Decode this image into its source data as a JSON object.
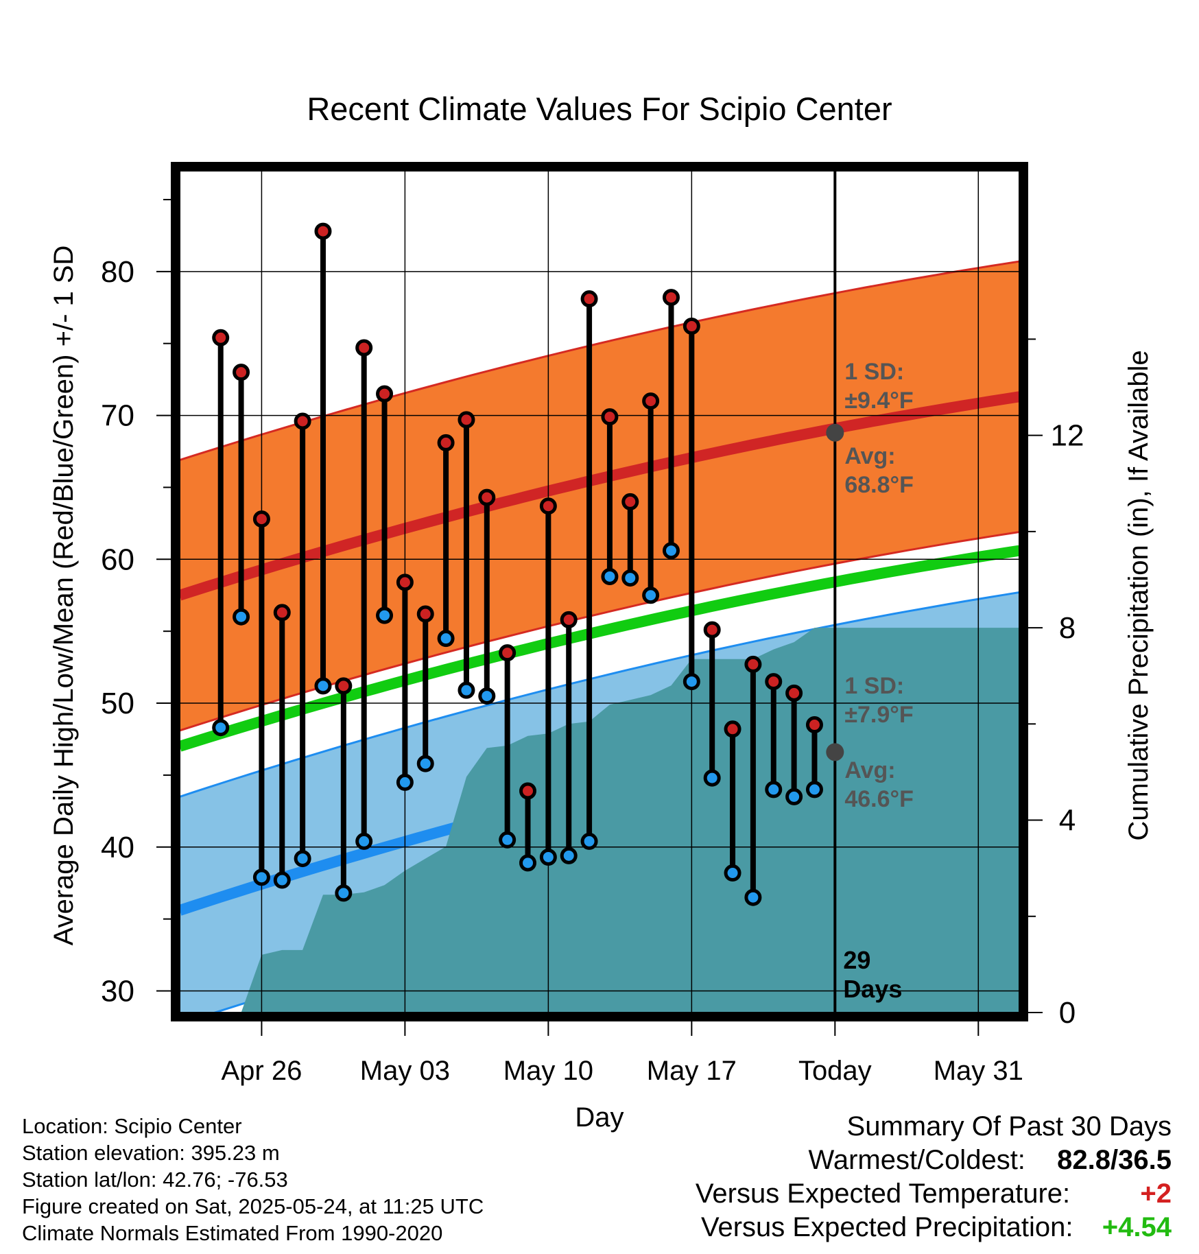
{
  "chart_data": {
    "type": "line",
    "title": "Recent Climate Values For Scipio Center",
    "xlabel": "Day",
    "ylabel": "Average Daily High/Low/Mean (Red/Blue/Green) +/- 1 SD",
    "y2label": "Cumulative Precipitation (in), If Available",
    "ylim": [
      28.5,
      87
    ],
    "y2lim": [
      0,
      17.5
    ],
    "xlim": [
      "2025-04-22",
      "2025-06-02"
    ],
    "y_ticks": [
      "30",
      "40",
      "50",
      "60",
      "70",
      "80"
    ],
    "y2_ticks": [
      "0",
      "4",
      "8",
      "12"
    ],
    "x_ticks": [
      {
        "date": "2025-04-26",
        "label": "Apr 26"
      },
      {
        "date": "2025-05-03",
        "label": "May 03"
      },
      {
        "date": "2025-05-10",
        "label": "May 10"
      },
      {
        "date": "2025-05-17",
        "label": "May 17"
      },
      {
        "date": "2025-05-24",
        "label": "Today"
      },
      {
        "date": "2025-05-31",
        "label": "May 31"
      }
    ],
    "today": "2025-05-24",
    "days_label": [
      "29",
      "Days"
    ],
    "normals": {
      "start_date": "2025-04-22",
      "end_date": "2025-06-02",
      "avg_high": [
        57.5,
        71.3
      ],
      "high_sd": 9.4,
      "avg_low": [
        35.6,
        49.8
      ],
      "low_sd": 7.9,
      "avg_mean": [
        47.0,
        60.6
      ]
    },
    "annotations": {
      "high_sd_label": [
        "1 SD:",
        "±9.4°F"
      ],
      "high_avg_label": [
        "Avg:",
        "68.8°F"
      ],
      "high_avg_value": 68.8,
      "low_sd_label": [
        "1 SD:",
        "±7.9°F"
      ],
      "low_avg_label": [
        "Avg:",
        "46.6°F"
      ],
      "low_avg_value": 46.6
    },
    "daily": [
      {
        "date": "2025-04-24",
        "high": 75.4,
        "low": 48.3
      },
      {
        "date": "2025-04-25",
        "high": 73.0,
        "low": 56.0
      },
      {
        "date": "2025-04-26",
        "high": 62.8,
        "low": 37.9
      },
      {
        "date": "2025-04-27",
        "high": 56.3,
        "low": 37.7
      },
      {
        "date": "2025-04-28",
        "high": 69.6,
        "low": 39.2
      },
      {
        "date": "2025-04-29",
        "high": 82.8,
        "low": 51.2
      },
      {
        "date": "2025-04-30",
        "high": 51.2,
        "low": 36.8
      },
      {
        "date": "2025-05-01",
        "high": 74.7,
        "low": 40.4
      },
      {
        "date": "2025-05-02",
        "high": 71.5,
        "low": 56.1
      },
      {
        "date": "2025-05-03",
        "high": 58.4,
        "low": 44.5
      },
      {
        "date": "2025-05-04",
        "high": 56.2,
        "low": 45.8
      },
      {
        "date": "2025-05-05",
        "high": 68.1,
        "low": 54.5
      },
      {
        "date": "2025-05-06",
        "high": 69.7,
        "low": 50.9
      },
      {
        "date": "2025-05-07",
        "high": 64.3,
        "low": 50.5
      },
      {
        "date": "2025-05-08",
        "high": 53.5,
        "low": 40.5
      },
      {
        "date": "2025-05-09",
        "high": 43.9,
        "low": 38.9
      },
      {
        "date": "2025-05-10",
        "high": 63.7,
        "low": 39.3
      },
      {
        "date": "2025-05-11",
        "high": 55.8,
        "low": 39.4
      },
      {
        "date": "2025-05-12",
        "high": 78.1,
        "low": 40.4
      },
      {
        "date": "2025-05-13",
        "high": 69.9,
        "low": 58.8
      },
      {
        "date": "2025-05-14",
        "high": 64.0,
        "low": 58.7
      },
      {
        "date": "2025-05-15",
        "high": 71.0,
        "low": 57.5
      },
      {
        "date": "2025-05-16",
        "high": 78.2,
        "low": 60.6
      },
      {
        "date": "2025-05-17",
        "high": 76.2,
        "low": 51.5
      },
      {
        "date": "2025-05-18",
        "high": 55.1,
        "low": 44.8
      },
      {
        "date": "2025-05-19",
        "high": 48.2,
        "low": 38.2
      },
      {
        "date": "2025-05-20",
        "high": 52.7,
        "low": 36.5
      },
      {
        "date": "2025-05-21",
        "high": 51.5,
        "low": 44.0
      },
      {
        "date": "2025-05-22",
        "high": 50.7,
        "low": 43.5
      },
      {
        "date": "2025-05-23",
        "high": 48.5,
        "low": 44.0
      }
    ],
    "cumulative_precip": [
      {
        "date": "2025-04-23",
        "value": 0.0
      },
      {
        "date": "2025-04-24",
        "value": 0.0
      },
      {
        "date": "2025-04-25",
        "value": 0.0
      },
      {
        "date": "2025-04-26",
        "value": 1.2
      },
      {
        "date": "2025-04-27",
        "value": 1.3
      },
      {
        "date": "2025-04-28",
        "value": 1.3
      },
      {
        "date": "2025-04-29",
        "value": 2.45
      },
      {
        "date": "2025-04-30",
        "value": 2.45
      },
      {
        "date": "2025-05-01",
        "value": 2.5
      },
      {
        "date": "2025-05-02",
        "value": 2.65
      },
      {
        "date": "2025-05-03",
        "value": 2.95
      },
      {
        "date": "2025-05-04",
        "value": 3.2
      },
      {
        "date": "2025-05-05",
        "value": 3.45
      },
      {
        "date": "2025-05-06",
        "value": 4.9
      },
      {
        "date": "2025-05-07",
        "value": 5.5
      },
      {
        "date": "2025-05-08",
        "value": 5.55
      },
      {
        "date": "2025-05-09",
        "value": 5.75
      },
      {
        "date": "2025-05-10",
        "value": 5.8
      },
      {
        "date": "2025-05-11",
        "value": 6.0
      },
      {
        "date": "2025-05-12",
        "value": 6.05
      },
      {
        "date": "2025-05-13",
        "value": 6.4
      },
      {
        "date": "2025-05-14",
        "value": 6.5
      },
      {
        "date": "2025-05-15",
        "value": 6.6
      },
      {
        "date": "2025-05-16",
        "value": 6.8
      },
      {
        "date": "2025-05-17",
        "value": 7.35
      },
      {
        "date": "2025-05-18",
        "value": 7.35
      },
      {
        "date": "2025-05-19",
        "value": 7.35
      },
      {
        "date": "2025-05-20",
        "value": 7.35
      },
      {
        "date": "2025-05-21",
        "value": 7.55
      },
      {
        "date": "2025-05-22",
        "value": 7.7
      },
      {
        "date": "2025-05-23",
        "value": 8.0
      },
      {
        "date": "2025-06-02",
        "value": 8.0
      }
    ],
    "colors": {
      "high_band": "#f47a2e",
      "high_band_edge": "#d52a22",
      "high_avg": "#d02525",
      "low_band": "#86c2e6",
      "low_band_edge": "#1e8df0",
      "low_avg": "#1e8df0",
      "mean_avg": "#11cc11",
      "precip": "#4a9aa4",
      "high_dot": "#cc2222",
      "low_dot": "#2299ee",
      "avg_marker": "#444444",
      "annotation_text": "#555555"
    }
  },
  "footer": {
    "location": "Location: Scipio Center",
    "elevation": "Station elevation: 395.23 m",
    "latlon": "Station lat/lon: 42.76; -76.53",
    "created": "Figure created on Sat, 2025-05-24, at 11:25 UTC",
    "normals": "Climate Normals Estimated From 1990-2020"
  },
  "summary": {
    "title": "Summary Of Past 30 Days",
    "warmest_label": "Warmest/Coldest:",
    "warmest_value": "82.8/36.5",
    "temp_label": "Versus Expected Temperature:",
    "temp_value": "+2",
    "precip_label": "Versus Expected Precipitation:",
    "precip_value": "+4.54"
  }
}
